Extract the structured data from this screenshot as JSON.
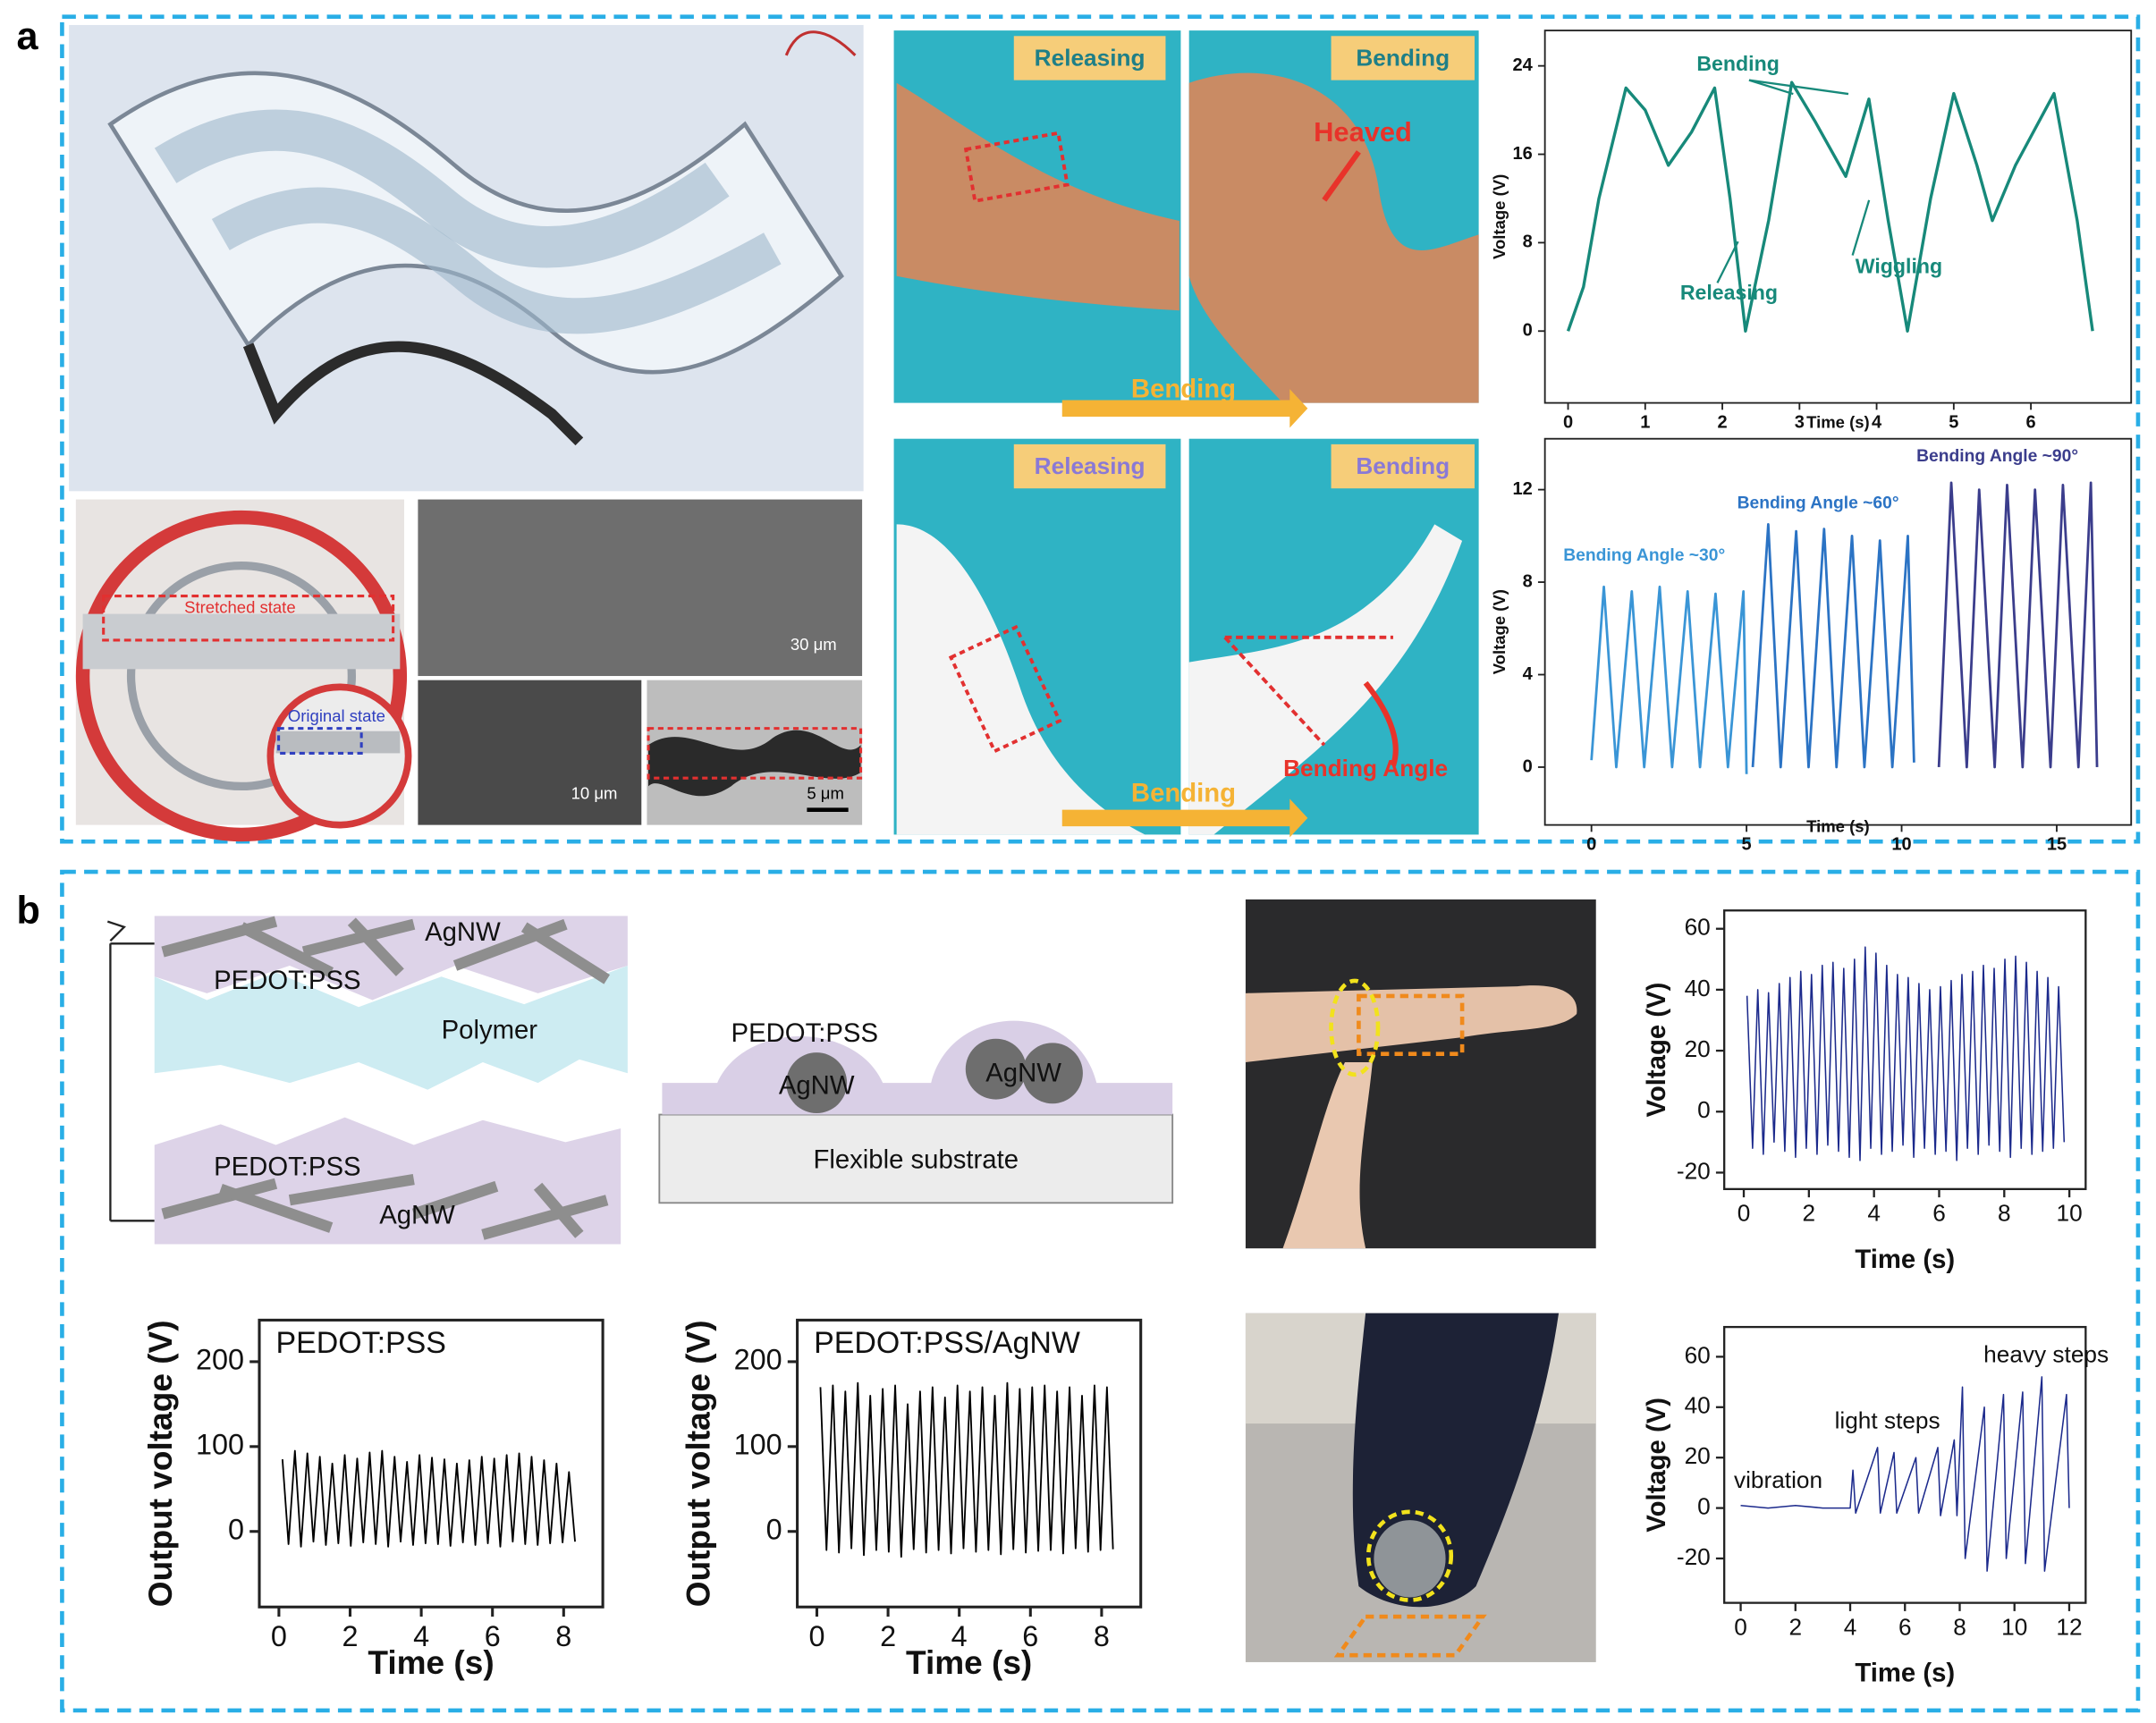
{
  "panel_a": {
    "label": "a",
    "seal": [
      "Stretched state",
      "Original state"
    ],
    "sem_scale": [
      "30 μm",
      "10 μm",
      "5 μm"
    ],
    "arm_top": [
      "Releasing",
      "Bending",
      "Heaved",
      "Bending"
    ],
    "arm_bottom": [
      "Releasing",
      "Bending",
      "Bending Angle",
      "Bending"
    ]
  },
  "panel_b": {
    "label": "b",
    "schematic_1": [
      "AgNW",
      "PEDOT:PSS",
      "Polymer",
      "PEDOT:PSS",
      "AgNW"
    ],
    "schematic_2": [
      "PEDOT:PSS",
      "AgNW",
      "AgNW",
      "Flexible substrate"
    ]
  },
  "chart_data": [
    {
      "type": "line",
      "xlabel": "Time (s)",
      "ylabel": "Voltage (V)",
      "annotations": [
        "Bending",
        "Releasing",
        "Wiggling"
      ],
      "x": [
        0,
        0.2,
        0.4,
        0.75,
        1.0,
        1.3,
        1.6,
        1.9,
        2.1,
        2.3,
        2.6,
        2.9,
        3.2,
        3.6,
        3.9,
        4.15,
        4.4,
        4.7,
        5.0,
        5.3,
        5.5,
        5.8,
        6.3,
        6.6,
        6.8
      ],
      "series": [
        {
          "color": "#17897a",
          "values": [
            0,
            4,
            12,
            22,
            20,
            15,
            18,
            22,
            12,
            0,
            10,
            22.5,
            19,
            14,
            21,
            10,
            0,
            12,
            21.5,
            15,
            10,
            15,
            21.5,
            10,
            0
          ]
        }
      ],
      "xlim": [
        -0.3,
        7.3
      ],
      "ylim": [
        -6.5,
        27.2
      ],
      "xticks": [
        0,
        1,
        2,
        3,
        4,
        5,
        6
      ],
      "yticks": [
        0,
        8,
        16,
        24
      ]
    },
    {
      "type": "line",
      "xlabel": "Time (s)",
      "ylabel": "Voltage (V)",
      "series": [
        {
          "name": "Bending Angle ~30°",
          "color": "#3a95d6",
          "x": [
            0,
            0.4,
            0.8,
            1.3,
            1.7,
            2.2,
            2.6,
            3.1,
            3.5,
            4.0,
            4.4,
            4.9,
            5.0
          ],
          "values": [
            0.3,
            7.8,
            0,
            7.6,
            0,
            7.8,
            0,
            7.6,
            0,
            7.5,
            0,
            7.6,
            -0.3
          ]
        },
        {
          "name": "Bending Angle ~60°",
          "color": "#2b73c4",
          "x": [
            5.2,
            5.7,
            6.1,
            6.6,
            7.0,
            7.5,
            7.9,
            8.4,
            8.8,
            9.3,
            9.7,
            10.2,
            10.4
          ],
          "values": [
            0,
            10.5,
            0,
            10.2,
            0,
            10.3,
            0,
            10,
            0,
            9.8,
            0,
            10,
            0.2
          ]
        },
        {
          "name": "Bending Angle ~90°",
          "color": "#3b3d8c",
          "x": [
            11.2,
            11.6,
            12.1,
            12.5,
            13.0,
            13.4,
            13.9,
            14.3,
            14.8,
            15.2,
            15.7,
            16.1,
            16.3
          ],
          "values": [
            0,
            12.3,
            0,
            12,
            0,
            12.2,
            0,
            12,
            0,
            12.2,
            0,
            12.3,
            0
          ]
        }
      ],
      "xlim": [
        -1.5,
        17.4
      ],
      "ylim": [
        -2.5,
        14.2
      ],
      "xticks": [
        0,
        5,
        10,
        15
      ],
      "yticks": [
        0,
        4,
        8,
        12
      ]
    },
    {
      "type": "line",
      "xlabel": "Time (s)",
      "ylabel": "Voltage (V)",
      "x": [
        0.1,
        0.27,
        0.43,
        0.6,
        0.76,
        0.93,
        1.09,
        1.26,
        1.42,
        1.59,
        1.75,
        1.92,
        2.08,
        2.25,
        2.41,
        2.58,
        2.74,
        2.91,
        3.07,
        3.24,
        3.4,
        3.57,
        3.73,
        3.9,
        4.06,
        4.23,
        4.39,
        4.56,
        4.72,
        4.89,
        5.05,
        5.22,
        5.38,
        5.55,
        5.71,
        5.88,
        6.04,
        6.21,
        6.37,
        6.54,
        6.7,
        6.87,
        7.03,
        7.2,
        7.36,
        7.53,
        7.69,
        7.86,
        8.02,
        8.19,
        8.35,
        8.52,
        8.68,
        8.85,
        9.01,
        9.18,
        9.34,
        9.51,
        9.67,
        9.84
      ],
      "series": [
        {
          "color": "#1c2a8c",
          "values": [
            38,
            -12,
            40,
            -14,
            39,
            -10,
            42,
            -13,
            44,
            -15,
            46,
            -12,
            45,
            -14,
            48,
            -11,
            49,
            -13,
            47,
            -15,
            50,
            -16,
            54,
            -12,
            52,
            -14,
            48,
            -13,
            45,
            -11,
            44,
            -15,
            42,
            -12,
            40,
            -14,
            41,
            -13,
            43,
            -16,
            45,
            -12,
            46,
            -14,
            48,
            -11,
            47,
            -13,
            50,
            -15,
            51,
            -12,
            49,
            -14,
            46,
            -13,
            44,
            -12,
            41,
            -10
          ]
        }
      ],
      "xlim": [
        -0.6,
        10.5
      ],
      "ylim": [
        -25.4,
        66
      ],
      "xticks": [
        0,
        2,
        4,
        6,
        8,
        10
      ],
      "yticks": [
        -20,
        0,
        20,
        40,
        60
      ]
    },
    {
      "type": "line",
      "xlabel": "Time (s)",
      "ylabel": "Voltage (V)",
      "annotations": [
        "vibration",
        "light steps",
        "heavy steps"
      ],
      "x": [
        0,
        1,
        2,
        3,
        4,
        4.1,
        4.2,
        5.0,
        5.1,
        5.6,
        5.7,
        6.4,
        6.5,
        7.2,
        7.3,
        7.8,
        7.9,
        8.1,
        8.2,
        8.9,
        9.0,
        9.6,
        9.7,
        10.3,
        10.4,
        11.0,
        11.1,
        11.9,
        12
      ],
      "series": [
        {
          "color": "#1c2a8c",
          "values": [
            1,
            0,
            1,
            0,
            0,
            15,
            -2,
            24,
            -2,
            22,
            -2,
            20,
            -2,
            24,
            -3,
            27,
            -3,
            48,
            -20,
            40,
            -25,
            45,
            -20,
            46,
            -22,
            52,
            -25,
            45,
            0
          ]
        }
      ],
      "xlim": [
        -0.6,
        12.6
      ],
      "ylim": [
        -37.6,
        71.8
      ],
      "xticks": [
        0,
        2,
        4,
        6,
        8,
        10,
        12
      ],
      "yticks": [
        -20,
        0,
        20,
        40,
        60
      ]
    },
    {
      "type": "line",
      "title": "PEDOT:PSS",
      "xlabel": "Time (s)",
      "ylabel": "Output voltage (V)",
      "x": [
        0.1,
        0.27,
        0.45,
        0.62,
        0.8,
        0.97,
        1.15,
        1.32,
        1.5,
        1.67,
        1.85,
        2.02,
        2.2,
        2.37,
        2.55,
        2.72,
        2.9,
        3.07,
        3.25,
        3.42,
        3.6,
        3.77,
        3.95,
        4.12,
        4.3,
        4.47,
        4.65,
        4.82,
        5.0,
        5.17,
        5.35,
        5.52,
        5.7,
        5.87,
        6.05,
        6.22,
        6.4,
        6.57,
        6.75,
        6.92,
        7.1,
        7.27,
        7.45,
        7.62,
        7.8,
        7.97,
        8.15,
        8.32
      ],
      "series": [
        {
          "color": "#000000",
          "values": [
            85,
            -15,
            95,
            -18,
            92,
            -12,
            88,
            -16,
            80,
            -14,
            90,
            -17,
            86,
            -13,
            93,
            -15,
            95,
            -18,
            88,
            -12,
            82,
            -16,
            90,
            -14,
            87,
            -15,
            85,
            -17,
            80,
            -13,
            84,
            -16,
            88,
            -14,
            86,
            -18,
            90,
            -12,
            92,
            -15,
            88,
            -16,
            84,
            -14,
            80,
            -13,
            70,
            -12
          ]
        }
      ],
      "xlim": [
        -0.55,
        9.1
      ],
      "ylim": [
        -89,
        249
      ],
      "xticks": [
        0,
        2,
        4,
        6,
        8
      ],
      "yticks": [
        0,
        100,
        200
      ]
    },
    {
      "type": "line",
      "title": "PEDOT:PSS/AgNW",
      "xlabel": "Time (s)",
      "ylabel": "Output voltage (V)",
      "x": [
        0.1,
        0.27,
        0.45,
        0.62,
        0.8,
        0.97,
        1.15,
        1.32,
        1.5,
        1.67,
        1.85,
        2.02,
        2.2,
        2.37,
        2.55,
        2.72,
        2.9,
        3.07,
        3.25,
        3.42,
        3.6,
        3.77,
        3.95,
        4.12,
        4.3,
        4.47,
        4.65,
        4.82,
        5.0,
        5.17,
        5.35,
        5.52,
        5.7,
        5.87,
        6.05,
        6.22,
        6.4,
        6.57,
        6.75,
        6.92,
        7.1,
        7.27,
        7.45,
        7.62,
        7.8,
        7.97,
        8.15,
        8.32
      ],
      "series": [
        {
          "color": "#000000",
          "values": [
            170,
            -22,
            172,
            -25,
            165,
            -20,
            175,
            -28,
            160,
            -22,
            168,
            -24,
            172,
            -30,
            150,
            -21,
            165,
            -25,
            170,
            -22,
            158,
            -26,
            172,
            -20,
            165,
            -24,
            170,
            -22,
            160,
            -27,
            175,
            -21,
            168,
            -25,
            170,
            -23,
            172,
            -22,
            165,
            -26,
            170,
            -20,
            160,
            -24,
            172,
            -22,
            170,
            -21
          ]
        }
      ],
      "xlim": [
        -0.55,
        9.1
      ],
      "ylim": [
        -89,
        249
      ],
      "xticks": [
        0,
        2,
        4,
        6,
        8
      ],
      "yticks": [
        0,
        100,
        200
      ]
    }
  ]
}
